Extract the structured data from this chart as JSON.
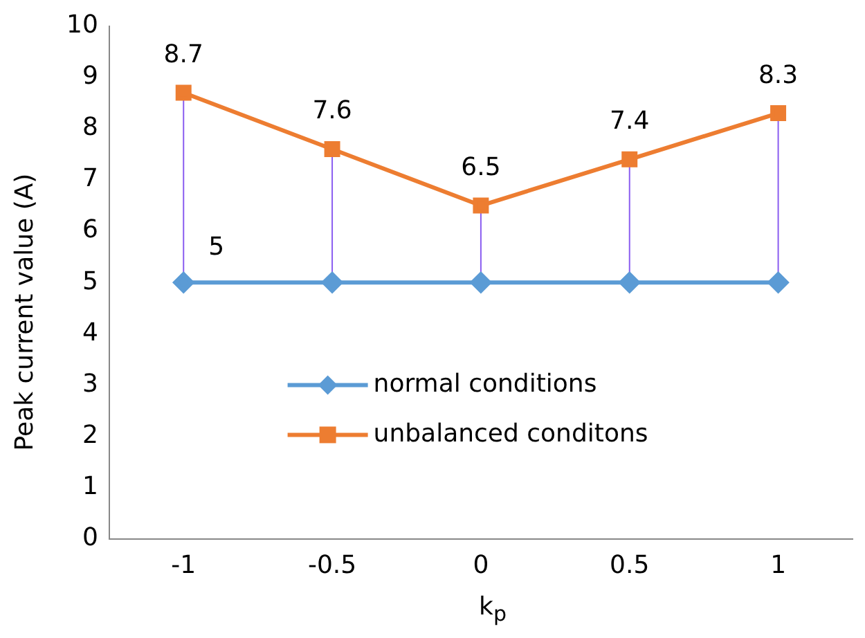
{
  "chart_data": {
    "type": "line",
    "xlabel": "k$_{p}$",
    "ylabel": "Peak current value  (A)",
    "categories": [
      "-1",
      "-0.5",
      "0",
      "0.5",
      "1"
    ],
    "series": [
      {
        "name": "normal conditions",
        "color": "#5b9bd5",
        "marker": "diamond",
        "values": [
          5,
          5,
          5,
          5,
          5
        ],
        "value_labels": [
          "5",
          null,
          null,
          null,
          null
        ]
      },
      {
        "name": "unbalanced conditons",
        "color": "#ed7d31",
        "marker": "square",
        "values": [
          8.7,
          7.6,
          6.5,
          7.4,
          8.3
        ],
        "value_labels": [
          "8.7",
          "7.6",
          "6.5",
          "7.4",
          "8.3"
        ]
      }
    ],
    "ylim": [
      0,
      10
    ],
    "yticks": [
      0,
      1,
      2,
      3,
      4,
      5,
      6,
      7,
      8,
      9,
      10
    ],
    "grid": false,
    "legend": "center",
    "line_style": "solid"
  }
}
